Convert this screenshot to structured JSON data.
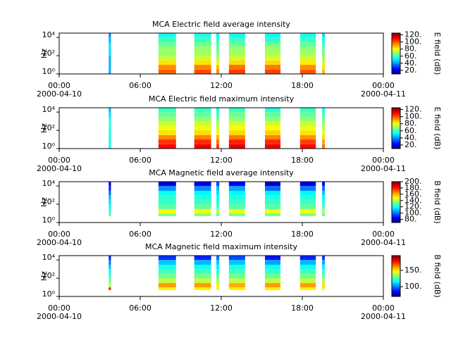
{
  "chart_data": [
    {
      "type": "spectrogram",
      "title": "MCA  Electric field average intensity",
      "ylabel": "Hz",
      "yscale": "log",
      "ylim": [
        1,
        30000
      ],
      "yticks": [
        {
          "value": 1,
          "label": "10⁰"
        },
        {
          "value": 100,
          "label": "10²"
        },
        {
          "value": 10000,
          "label": "10⁴"
        }
      ],
      "xlim": [
        "2000-04-10 00:00",
        "2000-04-11 00:00"
      ],
      "xticks": [
        {
          "value": "2000-04-10 00:00",
          "label": "00:00",
          "sublabel": "2000-04-10"
        },
        {
          "value": "2000-04-10 06:00",
          "label": "06:00"
        },
        {
          "value": "2000-04-10 12:00",
          "label": "12:00"
        },
        {
          "value": "2000-04-10 18:00",
          "label": "18:00"
        },
        {
          "value": "2000-04-11 00:00",
          "label": "00:00",
          "sublabel": "2000-04-11"
        }
      ],
      "zlabel": "E field (dB)",
      "zlim": [
        10,
        125
      ],
      "zticks": [
        {
          "value": 20,
          "label": "20."
        },
        {
          "value": 40,
          "label": "40."
        },
        {
          "value": 60,
          "label": "60."
        },
        {
          "value": 80,
          "label": "80."
        },
        {
          "value": 100,
          "label": "100."
        },
        {
          "value": 120,
          "label": "120."
        }
      ],
      "bins": [
        1,
        3,
        10,
        30,
        100,
        300,
        1000,
        3000,
        10000,
        30000
      ],
      "segments": [
        {
          "start": "2000-04-10 03:40",
          "end": "2000-04-10 03:50",
          "values": [
            45,
            45,
            45,
            45,
            50,
            50,
            50,
            45,
            40
          ]
        },
        {
          "start": "2000-04-10 07:21",
          "end": "2000-04-10 08:39",
          "values": [
            100,
            95,
            85,
            75,
            70,
            70,
            65,
            60,
            55
          ]
        },
        {
          "start": "2000-04-10 10:00",
          "end": "2000-04-10 11:15",
          "values": [
            102,
            96,
            85,
            76,
            72,
            70,
            66,
            60,
            56
          ]
        },
        {
          "start": "2000-04-10 11:38",
          "end": "2000-04-10 11:51",
          "values": [
            95,
            90,
            80,
            72,
            68,
            65,
            62,
            58,
            52
          ]
        },
        {
          "start": "2000-04-10 12:34",
          "end": "2000-04-10 13:46",
          "values": [
            104,
            98,
            86,
            76,
            72,
            70,
            65,
            60,
            55
          ]
        },
        {
          "start": "2000-04-10 15:14",
          "end": "2000-04-10 16:23",
          "values": [
            103,
            97,
            86,
            77,
            73,
            70,
            66,
            58,
            54
          ]
        },
        {
          "start": "2000-04-10 17:50",
          "end": "2000-04-10 19:00",
          "values": [
            101,
            95,
            84,
            76,
            71,
            69,
            64,
            60,
            55
          ]
        },
        {
          "start": "2000-04-10 19:28",
          "end": "2000-04-10 19:40",
          "values": [
            90,
            85,
            78,
            70,
            66,
            64,
            60,
            55,
            50
          ]
        }
      ]
    },
    {
      "type": "spectrogram",
      "title": "MCA  Electric field maximum intensity",
      "ylabel": "Hz",
      "yscale": "log",
      "ylim": [
        1,
        30000
      ],
      "yticks": [
        {
          "value": 1,
          "label": "10⁰"
        },
        {
          "value": 100,
          "label": "10²"
        },
        {
          "value": 10000,
          "label": "10⁴"
        }
      ],
      "xlim": [
        "2000-04-10 00:00",
        "2000-04-11 00:00"
      ],
      "xticks": [
        {
          "value": "2000-04-10 00:00",
          "label": "00:00",
          "sublabel": "2000-04-10"
        },
        {
          "value": "2000-04-10 06:00",
          "label": "06:00"
        },
        {
          "value": "2000-04-10 12:00",
          "label": "12:00"
        },
        {
          "value": "2000-04-10 18:00",
          "label": "18:00"
        },
        {
          "value": "2000-04-11 00:00",
          "label": "00:00",
          "sublabel": "2000-04-11"
        }
      ],
      "zlabel": "E field (dB)",
      "zlim": [
        10,
        125
      ],
      "zticks": [
        {
          "value": 20,
          "label": "20."
        },
        {
          "value": 40,
          "label": "40."
        },
        {
          "value": 60,
          "label": "60."
        },
        {
          "value": 80,
          "label": "80."
        },
        {
          "value": 100,
          "label": "100."
        },
        {
          "value": 120,
          "label": "120."
        }
      ],
      "bins": [
        1,
        3,
        10,
        30,
        100,
        300,
        1000,
        3000,
        10000,
        30000
      ],
      "segments": [
        {
          "start": "2000-04-10 03:40",
          "end": "2000-04-10 03:50",
          "values": [
            55,
            55,
            55,
            55,
            60,
            58,
            55,
            50,
            45
          ]
        },
        {
          "start": "2000-04-10 07:21",
          "end": "2000-04-10 08:39",
          "values": [
            110,
            105,
            95,
            85,
            80,
            75,
            70,
            65,
            60
          ]
        },
        {
          "start": "2000-04-10 10:00",
          "end": "2000-04-10 11:15",
          "values": [
            112,
            106,
            96,
            86,
            80,
            76,
            70,
            64,
            60
          ]
        },
        {
          "start": "2000-04-10 11:38",
          "end": "2000-04-10 11:51",
          "values": [
            104,
            98,
            90,
            80,
            75,
            72,
            66,
            60,
            55
          ]
        },
        {
          "start": "2000-04-10 12:34",
          "end": "2000-04-10 13:46",
          "values": [
            113,
            107,
            97,
            86,
            81,
            76,
            70,
            65,
            60
          ]
        },
        {
          "start": "2000-04-10 15:14",
          "end": "2000-04-10 16:23",
          "values": [
            112,
            106,
            96,
            87,
            82,
            76,
            70,
            64,
            58
          ]
        },
        {
          "start": "2000-04-10 17:50",
          "end": "2000-04-10 19:00",
          "values": [
            110,
            104,
            94,
            85,
            80,
            75,
            69,
            64,
            60
          ]
        },
        {
          "start": "2000-04-10 19:28",
          "end": "2000-04-10 19:40",
          "values": [
            98,
            92,
            86,
            78,
            74,
            70,
            65,
            60,
            55
          ]
        }
      ]
    },
    {
      "type": "spectrogram",
      "title": "MCA  Magnetic field average intensity",
      "ylabel": "Hz",
      "yscale": "log",
      "ylim": [
        1,
        30000
      ],
      "yticks": [
        {
          "value": 1,
          "label": "10⁰"
        },
        {
          "value": 100,
          "label": "10²"
        },
        {
          "value": 10000,
          "label": "10⁴"
        }
      ],
      "xlim": [
        "2000-04-10 00:00",
        "2000-04-11 00:00"
      ],
      "xticks": [
        {
          "value": "2000-04-10 00:00",
          "label": "00:00",
          "sublabel": "2000-04-10"
        },
        {
          "value": "2000-04-10 06:00",
          "label": "06:00"
        },
        {
          "value": "2000-04-10 12:00",
          "label": "12:00"
        },
        {
          "value": "2000-04-10 18:00",
          "label": "18:00"
        },
        {
          "value": "2000-04-11 00:00",
          "label": "00:00",
          "sublabel": "2000-04-11"
        }
      ],
      "zlabel": "B field (dB)",
      "zlim": [
        70,
        200
      ],
      "zticks": [
        {
          "value": 80,
          "label": "80."
        },
        {
          "value": 100,
          "label": "100."
        },
        {
          "value": 120,
          "label": "120."
        },
        {
          "value": 140,
          "label": "140."
        },
        {
          "value": 160,
          "label": "160."
        },
        {
          "value": 180,
          "label": "180."
        },
        {
          "value": 200,
          "label": "200."
        }
      ],
      "bins": [
        5,
        10,
        30,
        100,
        300,
        1000,
        3000,
        10000,
        30000
      ],
      "segments": [
        {
          "start": "2000-04-10 03:40",
          "end": "2000-04-10 03:50",
          "values": [
            130,
            125,
            120,
            115,
            110,
            100,
            90,
            80
          ]
        },
        {
          "start": "2000-04-10 07:21",
          "end": "2000-04-10 08:39",
          "values": [
            135,
            150,
            130,
            125,
            125,
            120,
            105,
            82
          ]
        },
        {
          "start": "2000-04-10 10:00",
          "end": "2000-04-10 11:15",
          "values": [
            136,
            150,
            131,
            126,
            124,
            118,
            104,
            84
          ]
        },
        {
          "start": "2000-04-10 11:38",
          "end": "2000-04-10 11:51",
          "values": [
            130,
            140,
            128,
            122,
            120,
            115,
            110,
            95
          ]
        },
        {
          "start": "2000-04-10 12:34",
          "end": "2000-04-10 13:46",
          "values": [
            136,
            148,
            130,
            125,
            124,
            118,
            108,
            86
          ]
        },
        {
          "start": "2000-04-10 15:14",
          "end": "2000-04-10 16:23",
          "values": [
            135,
            149,
            130,
            125,
            123,
            117,
            100,
            80
          ]
        },
        {
          "start": "2000-04-10 17:50",
          "end": "2000-04-10 19:00",
          "values": [
            134,
            150,
            131,
            126,
            124,
            118,
            102,
            82
          ]
        },
        {
          "start": "2000-04-10 19:28",
          "end": "2000-04-10 19:40",
          "values": [
            130,
            140,
            128,
            122,
            118,
            112,
            100,
            85
          ]
        }
      ]
    },
    {
      "type": "spectrogram",
      "title": "MCA  Magnetic field maximum intensity",
      "ylabel": "Hz",
      "yscale": "log",
      "ylim": [
        1,
        30000
      ],
      "yticks": [
        {
          "value": 1,
          "label": "10⁰"
        },
        {
          "value": 100,
          "label": "10²"
        },
        {
          "value": 10000,
          "label": "10⁴"
        }
      ],
      "xlim": [
        "2000-04-10 00:00",
        "2000-04-11 00:00"
      ],
      "xticks": [
        {
          "value": "2000-04-10 00:00",
          "label": "00:00",
          "sublabel": "2000-04-10"
        },
        {
          "value": "2000-04-10 06:00",
          "label": "06:00"
        },
        {
          "value": "2000-04-10 12:00",
          "label": "12:00"
        },
        {
          "value": "2000-04-10 18:00",
          "label": "18:00"
        },
        {
          "value": "2000-04-11 00:00",
          "label": "00:00",
          "sublabel": "2000-04-11"
        }
      ],
      "zlabel": "B field (dB)",
      "zlim": [
        70,
        195
      ],
      "zticks": [
        {
          "value": 100,
          "label": "100."
        },
        {
          "value": 150,
          "label": "150."
        }
      ],
      "bins": [
        5,
        10,
        30,
        100,
        300,
        1000,
        3000,
        10000,
        30000
      ],
      "segments": [
        {
          "start": "2000-04-10 03:40",
          "end": "2000-04-10 03:50",
          "values": [
            175,
            140,
            130,
            125,
            118,
            110,
            100,
            90
          ]
        },
        {
          "start": "2000-04-10 07:21",
          "end": "2000-04-10 08:39",
          "values": [
            150,
            160,
            140,
            130,
            125,
            120,
            110,
            92
          ]
        },
        {
          "start": "2000-04-10 10:00",
          "end": "2000-04-10 11:15",
          "values": [
            150,
            160,
            140,
            131,
            125,
            119,
            108,
            90
          ]
        },
        {
          "start": "2000-04-10 11:38",
          "end": "2000-04-10 11:51",
          "values": [
            145,
            150,
            136,
            128,
            122,
            116,
            110,
            100
          ]
        },
        {
          "start": "2000-04-10 12:34",
          "end": "2000-04-10 13:46",
          "values": [
            150,
            158,
            140,
            130,
            125,
            120,
            110,
            95
          ]
        },
        {
          "start": "2000-04-10 15:14",
          "end": "2000-04-10 16:23",
          "values": [
            150,
            160,
            140,
            130,
            124,
            118,
            106,
            88
          ]
        },
        {
          "start": "2000-04-10 17:50",
          "end": "2000-04-10 19:00",
          "values": [
            150,
            160,
            140,
            131,
            125,
            119,
            108,
            90
          ]
        },
        {
          "start": "2000-04-10 19:28",
          "end": "2000-04-10 19:40",
          "values": [
            145,
            152,
            138,
            128,
            122,
            115,
            106,
            92
          ]
        }
      ]
    }
  ]
}
